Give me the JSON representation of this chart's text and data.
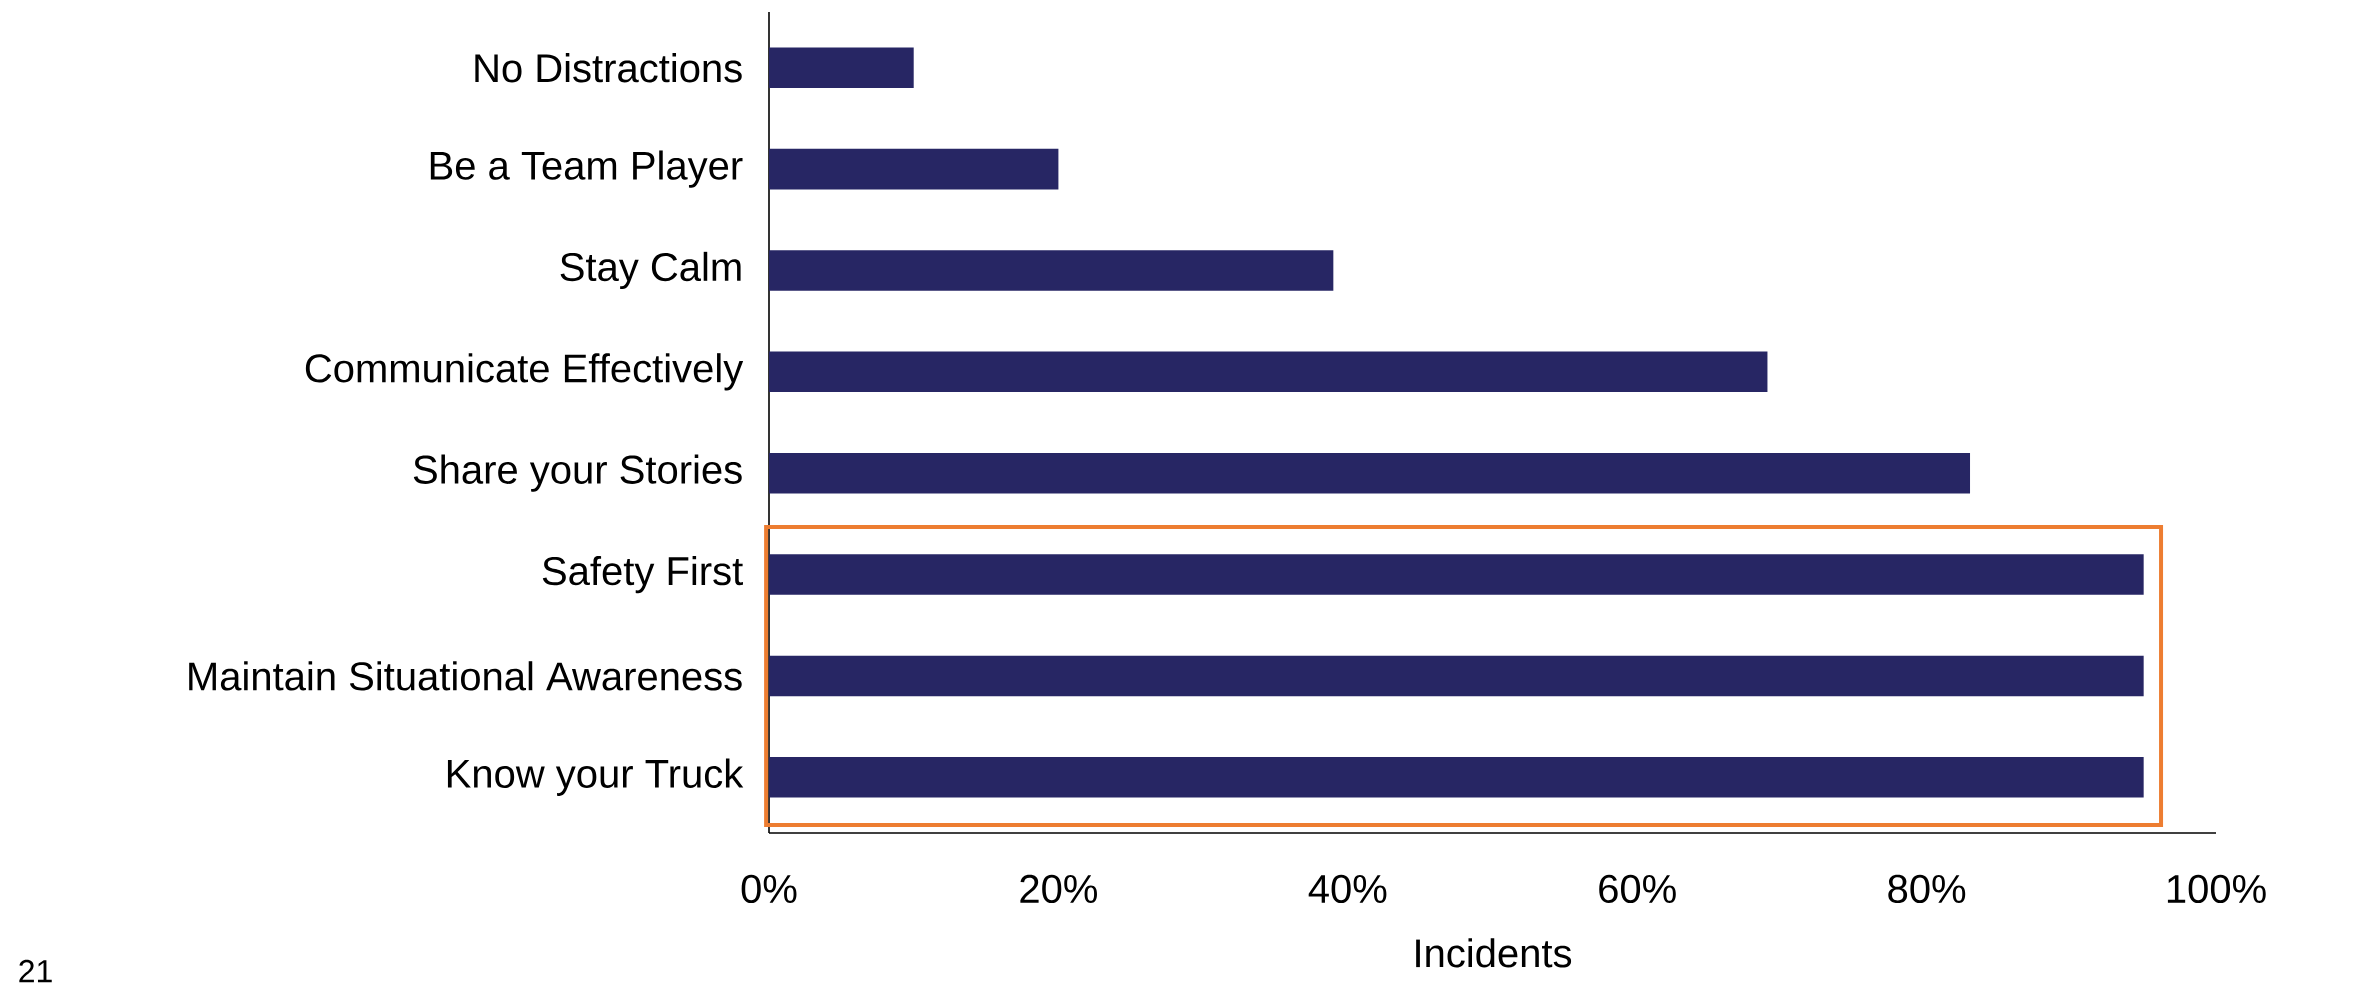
{
  "chart_data": {
    "type": "bar",
    "orientation": "horizontal",
    "categories": [
      "No Distractions",
      "Be a Team Player",
      "Stay Calm",
      "Communicate Effectively",
      "Share your Stories",
      "Safety First",
      "Maintain Situational Awareness",
      "Know your Truck"
    ],
    "values": [
      10,
      20,
      39,
      69,
      83,
      95,
      95,
      95
    ],
    "color": "#272664",
    "xlabel": "Incidents",
    "xlim": [
      0,
      100
    ],
    "xticks": [
      {
        "value": 0,
        "label": "0%"
      },
      {
        "value": 20,
        "label": "20%"
      },
      {
        "value": 40,
        "label": "40%"
      },
      {
        "value": 60,
        "label": "60%"
      },
      {
        "value": 80,
        "label": "80%"
      },
      {
        "value": 100,
        "label": "100%"
      }
    ],
    "grid": false,
    "annotations": [
      "21"
    ]
  }
}
